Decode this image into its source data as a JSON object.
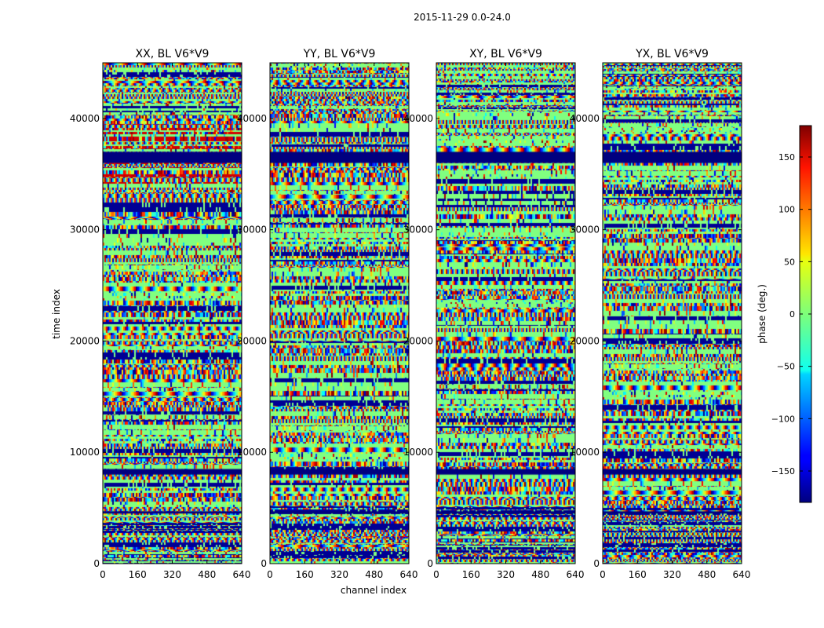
{
  "chart_data": {
    "type": "heatmap",
    "suptitle": "2015-11-29 0.0-24.0",
    "xlabel": "channel index",
    "ylabel": "time index",
    "x_range": [
      0,
      640
    ],
    "y_range": [
      0,
      45000
    ],
    "x_ticks": [
      0,
      160,
      320,
      480,
      640
    ],
    "x_tick_labels": [
      "0",
      "160",
      "320",
      "480",
      "640"
    ],
    "y_ticks": [
      0,
      10000,
      20000,
      30000,
      40000
    ],
    "y_tick_labels": [
      "0",
      "10000",
      "20000",
      "30000",
      "40000"
    ],
    "colormap": "jet",
    "colorbar": {
      "label": "phase (deg.)",
      "range": [
        -180,
        180
      ],
      "ticks": [
        -150,
        -100,
        -50,
        0,
        50,
        100,
        150
      ],
      "tick_labels": [
        "−150",
        "−100",
        "−50",
        "0",
        "50",
        "100",
        "150"
      ]
    },
    "panels": [
      {
        "title": "XX, BL V6*V9",
        "polarization": "XX",
        "baseline": "V6*V9"
      },
      {
        "title": "YY, BL V6*V9",
        "polarization": "YY",
        "baseline": "V6*V9"
      },
      {
        "title": "XY, BL V6*V9",
        "polarization": "XY",
        "baseline": "V6*V9"
      },
      {
        "title": "YX, BL V6*V9",
        "polarization": "YX",
        "baseline": "V6*V9"
      }
    ],
    "flagged_time_bands": [
      [
        36000,
        37000
      ],
      [
        8000,
        8500
      ],
      [
        4500,
        4700
      ]
    ]
  }
}
